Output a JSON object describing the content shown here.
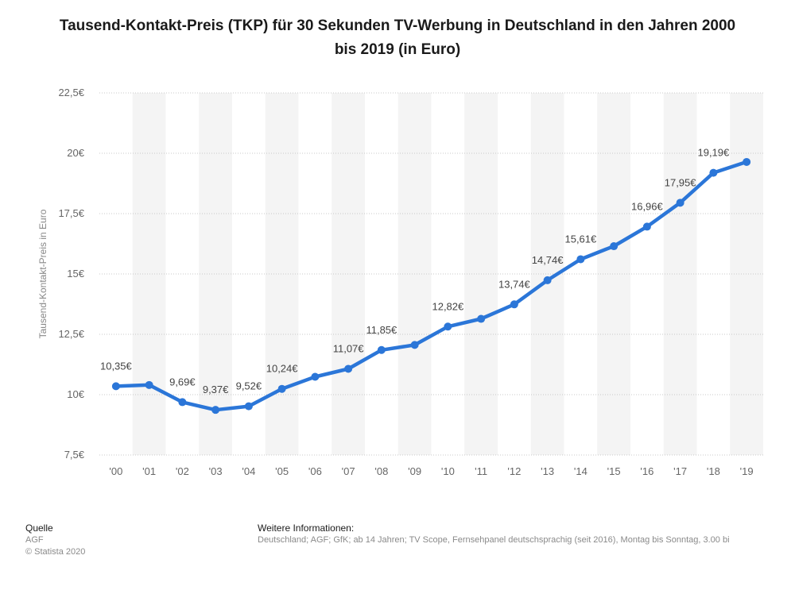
{
  "title": "Tausend-Kontakt-Preis (TKP) für 30 Sekunden TV-Werbung in Deutschland in den Jahren 2000 bis 2019 (in Euro)",
  "colors": {
    "line": "#2b76d8",
    "band": "#f4f4f4",
    "grid": "#c8c8c8",
    "text": "#666666"
  },
  "chart_data": {
    "type": "line",
    "title": "Tausend-Kontakt-Preis (TKP) für 30 Sekunden TV-Werbung in Deutschland in den Jahren 2000 bis 2019 (in Euro)",
    "xlabel": "",
    "ylabel": "Tausend-Kontakt-Preis in Euro",
    "categories": [
      "'00",
      "'01",
      "'02",
      "'03",
      "'04",
      "'05",
      "'06",
      "'07",
      "'08",
      "'09",
      "'10",
      "'11",
      "'12",
      "'13",
      "'14",
      "'15",
      "'16",
      "'17",
      "'18",
      "'19"
    ],
    "values": [
      10.35,
      10.4,
      9.69,
      9.37,
      9.52,
      10.24,
      10.74,
      11.07,
      11.85,
      12.06,
      12.82,
      13.14,
      13.74,
      14.74,
      15.61,
      16.15,
      16.96,
      17.95,
      19.19,
      19.64
    ],
    "data_labels": [
      "10,35€",
      "",
      "9,69€",
      "9,37€",
      "9,52€",
      "10,24€",
      "",
      "11,07€",
      "11,85€",
      "",
      "12,82€",
      "",
      "13,74€",
      "14,74€",
      "15,61€",
      "",
      "16,96€",
      "17,95€",
      "19,19€",
      ""
    ],
    "yticks": [
      7.5,
      10,
      12.5,
      15,
      17.5,
      20,
      22.5
    ],
    "ytick_labels": [
      "7,5€",
      "10€",
      "12,5€",
      "15€",
      "17,5€",
      "20€",
      "22,5€"
    ],
    "ylim": [
      7.5,
      22.5
    ],
    "grid": true
  },
  "footer": {
    "source_label": "Quelle",
    "source": "AGF",
    "copyright": "© Statista 2020",
    "info_label": "Weitere Informationen:",
    "info_text": "Deutschland; AGF; GfK; ab 14 Jahren; TV Scope, Fernsehpanel deutschsprachig (seit 2016), Montag bis Sonntag, 3.00 bi"
  }
}
